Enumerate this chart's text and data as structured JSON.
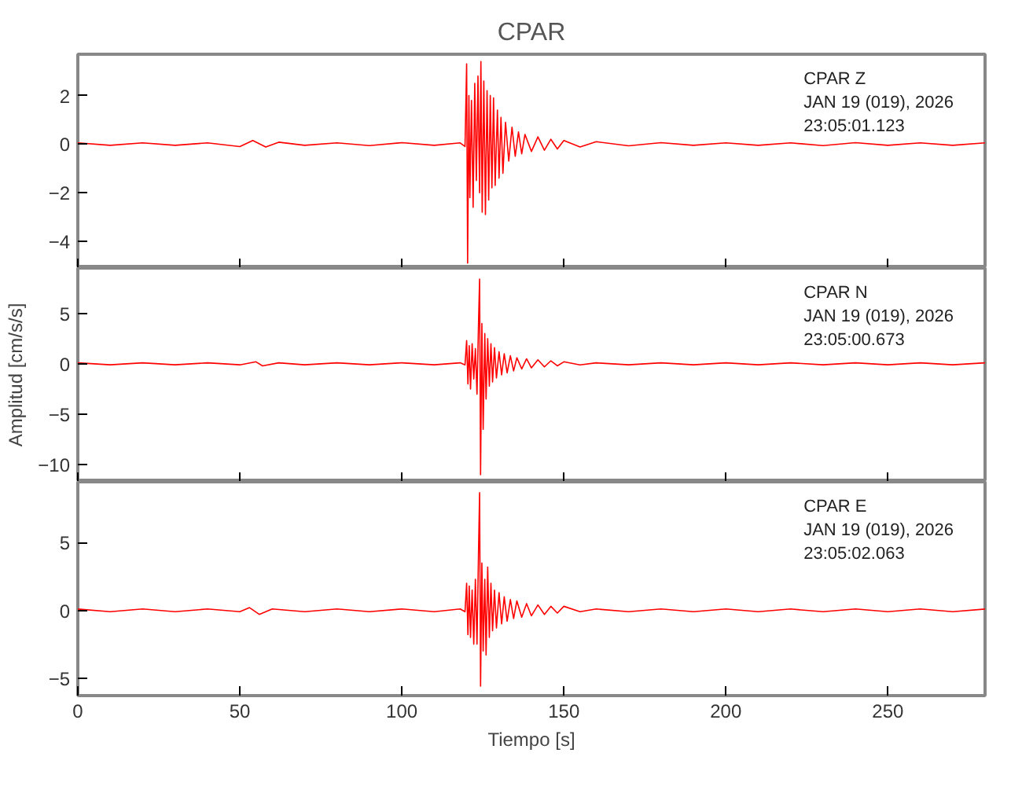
{
  "chart_data": [
    {
      "type": "line",
      "title": "CPAR",
      "xlim": [
        0,
        280
      ],
      "ylim": [
        -5.1,
        3.7
      ],
      "xticks": [
        0,
        50,
        100,
        150,
        200,
        250
      ],
      "yticks": [
        -4,
        -2,
        0,
        2
      ],
      "tick_labels": "y",
      "grid": false,
      "annotations": [
        "CPAR   Z",
        "JAN 19 (019), 2026",
        "23:05:01.123"
      ],
      "series": [
        {
          "color": "#ff0000",
          "x": [
            0,
            10,
            20,
            30,
            40,
            50,
            54,
            58,
            62,
            70,
            80,
            90,
            100,
            110,
            118,
            119.5,
            120,
            120.3,
            120.7,
            121,
            121.5,
            122,
            122.5,
            123,
            123.5,
            124,
            124.4,
            124.8,
            125.3,
            125.8,
            126.3,
            126.8,
            127.3,
            127.8,
            128.3,
            128.8,
            129.5,
            130,
            130.6,
            131.2,
            132,
            133,
            134,
            135,
            136,
            137,
            138,
            140,
            142,
            144,
            146,
            148,
            150,
            155,
            160,
            170,
            180,
            190,
            200,
            210,
            220,
            230,
            240,
            250,
            260,
            270,
            280
          ],
          "values": [
            0.05,
            -0.05,
            0.05,
            -0.05,
            0.05,
            -0.1,
            0.15,
            -0.12,
            0.08,
            -0.05,
            0.05,
            -0.06,
            0.06,
            -0.05,
            0.05,
            -0.1,
            3.3,
            -4.9,
            2.0,
            -2.2,
            1.8,
            -2.6,
            2.5,
            -1.5,
            2.8,
            -2.0,
            3.4,
            -2.8,
            2.6,
            -2.9,
            2.2,
            -2.3,
            2.0,
            -1.8,
            1.9,
            -1.7,
            1.4,
            -1.4,
            1.1,
            -1.2,
            0.9,
            -0.7,
            0.7,
            -0.5,
            0.5,
            -0.4,
            0.4,
            -0.3,
            0.3,
            -0.25,
            0.2,
            -0.2,
            0.15,
            -0.12,
            0.1,
            -0.07,
            0.06,
            -0.05,
            0.05,
            -0.05,
            0.05,
            -0.06,
            0.06,
            -0.05,
            0.05,
            -0.05,
            0.05
          ]
        }
      ]
    },
    {
      "type": "line",
      "ylabel": "Amplitud [cm/s/s]",
      "xlim": [
        0,
        280
      ],
      "ylim": [
        -11.7,
        9.5
      ],
      "xticks": [
        0,
        50,
        100,
        150,
        200,
        250
      ],
      "yticks": [
        -10,
        -5,
        0,
        5
      ],
      "tick_labels": "y",
      "grid": false,
      "annotations": [
        "CPAR   N",
        "JAN 19 (019), 2026",
        "23:05:00.673"
      ],
      "series": [
        {
          "color": "#ff0000",
          "x": [
            0,
            10,
            20,
            30,
            40,
            50,
            55,
            57,
            62,
            70,
            80,
            90,
            100,
            110,
            118,
            119.5,
            120,
            120.4,
            120.8,
            121.2,
            121.7,
            122.2,
            122.7,
            123.2,
            123.7,
            124,
            124.3,
            124.7,
            125.1,
            125.6,
            126,
            126.5,
            127,
            127.5,
            128,
            128.6,
            129.2,
            130,
            130.8,
            131.6,
            132.5,
            133.5,
            134.5,
            135.5,
            137,
            138.5,
            140,
            142,
            144,
            146,
            148,
            150,
            155,
            160,
            170,
            180,
            190,
            200,
            210,
            220,
            230,
            240,
            250,
            260,
            270,
            280
          ],
          "values": [
            0.1,
            -0.1,
            0.1,
            -0.1,
            0.1,
            -0.1,
            0.2,
            -0.2,
            0.1,
            -0.1,
            0.1,
            -0.1,
            0.1,
            -0.1,
            0.1,
            -0.1,
            2.3,
            -2.0,
            1.8,
            -2.5,
            2.0,
            -1.5,
            1.5,
            -3.0,
            4.5,
            8.4,
            -11.0,
            4.0,
            -6.5,
            3.0,
            -3.5,
            2.5,
            -2.2,
            2.0,
            -1.8,
            1.6,
            -1.4,
            1.2,
            -1.1,
            1.0,
            -0.9,
            0.8,
            -0.7,
            0.6,
            -0.5,
            0.5,
            -0.4,
            0.4,
            -0.3,
            0.3,
            -0.2,
            0.2,
            -0.1,
            0.1,
            -0.1,
            0.1,
            -0.1,
            0.1,
            -0.1,
            0.1,
            -0.1,
            0.1,
            -0.1,
            0.1,
            -0.1,
            0.1
          ]
        }
      ]
    },
    {
      "type": "line",
      "xlabel": "Tiempo [s]",
      "xlim": [
        0,
        280
      ],
      "ylim": [
        -6.3,
        9.5
      ],
      "xticks": [
        0,
        50,
        100,
        150,
        200,
        250
      ],
      "yticks": [
        -5,
        0,
        5
      ],
      "grid": false,
      "annotations": [
        "CPAR   E",
        "JAN 19 (019), 2026",
        "23:05:02.063"
      ],
      "series": [
        {
          "color": "#ff0000",
          "x": [
            0,
            10,
            20,
            30,
            40,
            50,
            53,
            56,
            60,
            70,
            80,
            90,
            100,
            110,
            118,
            119.5,
            120,
            120.4,
            120.8,
            121.2,
            121.7,
            122.2,
            122.7,
            123.2,
            123.7,
            124,
            124.3,
            124.7,
            125.1,
            125.6,
            126,
            126.5,
            127,
            127.5,
            128,
            128.6,
            129.2,
            130,
            130.8,
            131.6,
            132.5,
            133.5,
            134.5,
            135.5,
            137,
            138.5,
            140,
            142,
            144,
            146,
            148,
            150,
            155,
            160,
            170,
            180,
            190,
            200,
            210,
            220,
            230,
            240,
            250,
            260,
            270,
            280
          ],
          "values": [
            0.1,
            -0.1,
            0.1,
            -0.1,
            0.1,
            -0.1,
            0.2,
            -0.3,
            0.1,
            -0.1,
            0.1,
            -0.1,
            0.1,
            -0.1,
            0.1,
            -0.1,
            2.0,
            -1.8,
            1.8,
            -2.0,
            1.5,
            -2.5,
            2.3,
            -2.5,
            4.8,
            8.7,
            -5.6,
            3.5,
            -3.0,
            2.3,
            -3.3,
            3.2,
            -2.0,
            2.0,
            -1.5,
            1.5,
            -1.3,
            1.3,
            -1.0,
            1.0,
            -0.8,
            0.8,
            -0.6,
            0.7,
            -0.5,
            0.5,
            -0.4,
            0.4,
            -0.3,
            0.3,
            -0.2,
            0.3,
            -0.1,
            0.1,
            -0.1,
            0.1,
            -0.1,
            0.1,
            -0.1,
            0.1,
            -0.1,
            0.1,
            -0.1,
            0.1,
            -0.1,
            0.1
          ]
        }
      ]
    }
  ]
}
